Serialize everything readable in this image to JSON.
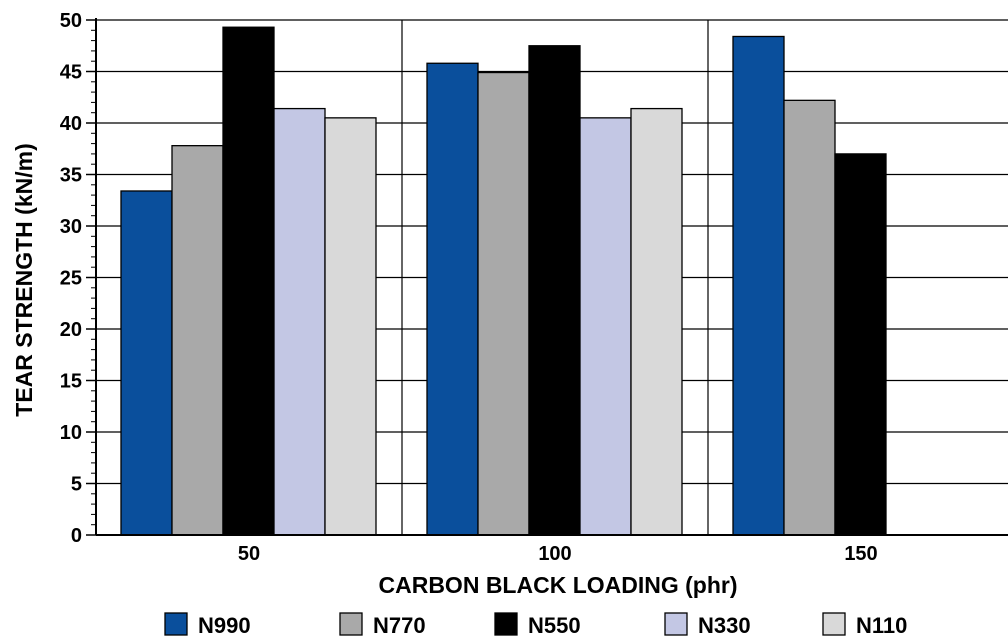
{
  "chart_data": {
    "type": "bar",
    "title": "",
    "xlabel": "CARBON BLACK LOADING (phr)",
    "ylabel": "TEAR STRENGTH (kN/m)",
    "ylim": [
      0,
      50
    ],
    "yticks": [
      0,
      5,
      10,
      15,
      20,
      25,
      30,
      35,
      40,
      45,
      50
    ],
    "categories": [
      "50",
      "100",
      "150"
    ],
    "grid": "horizontal gridlines and vertical group separators",
    "legend_position": "bottom",
    "series": [
      {
        "name": "N990",
        "color": "#0a4f9c",
        "values": [
          33.4,
          45.8,
          48.4
        ]
      },
      {
        "name": "N770",
        "color": "#a9a9a9",
        "values": [
          37.8,
          44.9,
          42.2
        ]
      },
      {
        "name": "N550",
        "color": "#000000",
        "values": [
          49.3,
          47.5,
          37.0
        ]
      },
      {
        "name": "N330",
        "color": "#c3c7e4",
        "values": [
          41.4,
          40.5,
          null
        ]
      },
      {
        "name": "N110",
        "color": "#d9d9d9",
        "values": [
          40.5,
          41.4,
          null
        ]
      }
    ]
  }
}
